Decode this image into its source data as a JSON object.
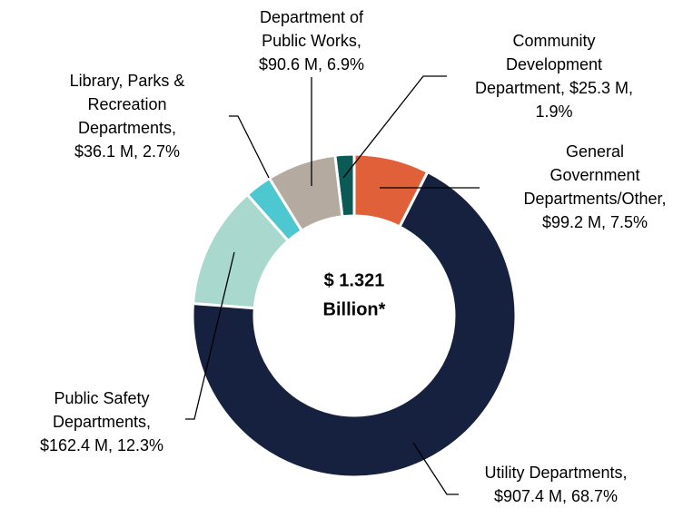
{
  "chart_data": {
    "type": "donut",
    "categories": [
      [
        "General",
        "Government",
        "Departments/Other,"
      ],
      [
        "Utility Departments,"
      ],
      [
        "Public Safety",
        "Departments,"
      ],
      [
        "Library, Parks &",
        "Recreation",
        "Departments,"
      ],
      [
        "Department of",
        "Public Works,"
      ],
      [
        "Community",
        "Development",
        "Department, $25.3 M,"
      ]
    ],
    "values": [
      7.5,
      68.7,
      12.3,
      2.7,
      6.9,
      1.9
    ],
    "value_labels": [
      "$99.2 M, 7.5%",
      "$907.4 M, 68.7%",
      "$162.4 M, 12.3%",
      "$36.1 M, 2.7%",
      "$90.6 M, 6.9%",
      "1.9%"
    ],
    "colors": [
      "#e0603a",
      "#16213f",
      "#a9d8cf",
      "#4dc8d0",
      "#b5aaa0",
      "#0b5a56"
    ],
    "center_label": [
      "$ 1.321",
      "Billion*"
    ]
  }
}
